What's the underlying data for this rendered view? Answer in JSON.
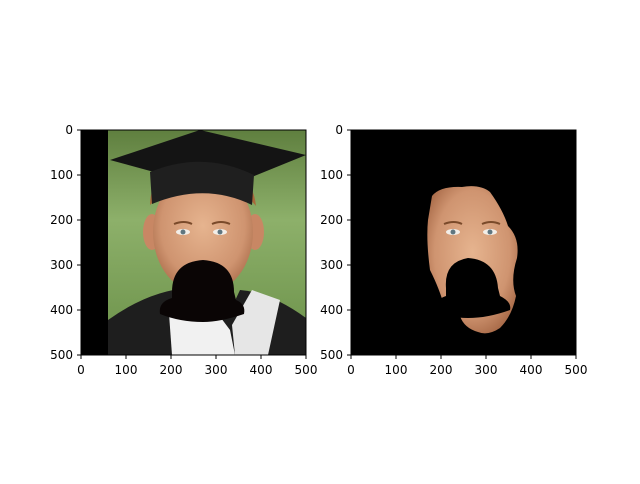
{
  "figure": {
    "panels": [
      {
        "name": "original-photo",
        "description_tag": "photo-panel",
        "x_ticks": [
          "0",
          "100",
          "200",
          "300",
          "400",
          "500"
        ],
        "y_ticks": [
          "0",
          "100",
          "200",
          "300",
          "400",
          "500"
        ],
        "xlim": [
          0,
          500
        ],
        "ylim": [
          500,
          0
        ]
      },
      {
        "name": "masked-face",
        "description_tag": "mask-panel",
        "x_ticks": [
          "0",
          "100",
          "200",
          "300",
          "400",
          "500"
        ],
        "y_ticks": [
          "0",
          "100",
          "200",
          "300",
          "400",
          "500"
        ],
        "xlim": [
          0,
          500
        ],
        "ylim": [
          500,
          0
        ]
      }
    ],
    "colors": {
      "background_green": "#7aa05a",
      "gown_black": "#1c1c1c",
      "skin": "#d9a27a",
      "hair": "#b07038",
      "occluder": "#0a0505"
    }
  }
}
